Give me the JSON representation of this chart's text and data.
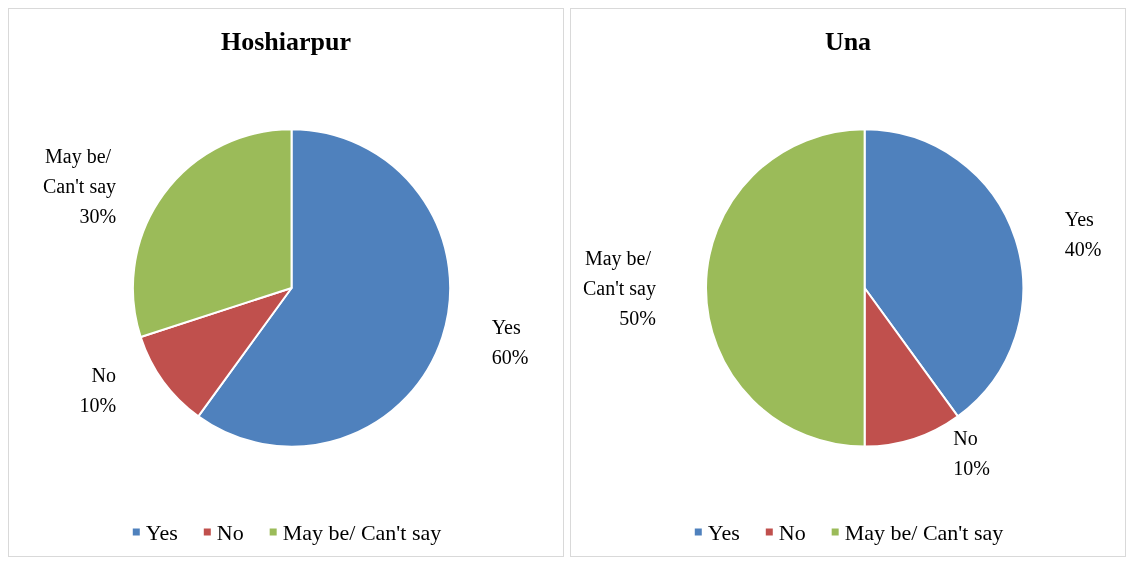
{
  "chart_data": [
    {
      "type": "pie",
      "title": "Hoshiarpur",
      "categories": [
        "Yes",
        "No",
        "May be/ Can't say"
      ],
      "values": [
        60,
        10,
        30
      ],
      "colors": [
        "#4f81bd",
        "#c0504d",
        "#9bbb59"
      ],
      "value_labels": [
        "60%",
        "10%",
        "30%"
      ],
      "legend": "bottom"
    },
    {
      "type": "pie",
      "title": "Una",
      "categories": [
        "Yes",
        "No",
        "May be/ Can't say"
      ],
      "values": [
        40,
        10,
        50
      ],
      "colors": [
        "#4f81bd",
        "#c0504d",
        "#9bbb59"
      ],
      "value_labels": [
        "40%",
        "10%",
        "50%"
      ],
      "legend": "bottom"
    }
  ]
}
